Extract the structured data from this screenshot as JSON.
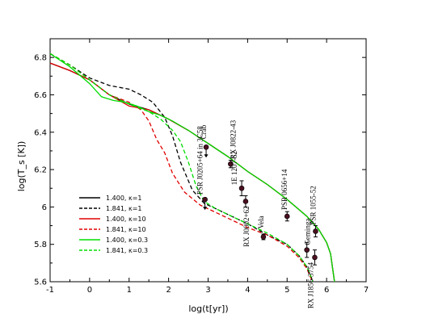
{
  "chart_data": {
    "type": "line",
    "xlabel": "log(t[yr])",
    "ylabel": "log(T_s [K])",
    "xlim": [
      -1,
      7
    ],
    "ylim": [
      5.6,
      6.9
    ],
    "xticks": [
      "-1",
      "0",
      "1",
      "2",
      "3",
      "4",
      "5",
      "6",
      "7"
    ],
    "yticks": [
      "5.6",
      "5.8",
      "6",
      "6.2",
      "6.4",
      "6.6",
      "6.8"
    ],
    "grid": false,
    "legend_position": "lower-left",
    "series": [
      {
        "name": "1.400,  κ=1",
        "color": "#000000",
        "dash": "solid",
        "x": [
          -1,
          -0.5,
          0,
          0.5,
          1,
          1.5,
          2,
          2.5,
          3,
          3.5,
          4,
          4.5,
          5,
          5.5,
          5.8,
          6.0,
          6.1,
          6.2
        ],
        "y": [
          6.77,
          6.73,
          6.68,
          6.6,
          6.55,
          6.52,
          6.47,
          6.41,
          6.34,
          6.27,
          6.19,
          6.12,
          6.04,
          5.95,
          5.88,
          5.81,
          5.75,
          5.6
        ]
      },
      {
        "name": "1.841,  κ=1",
        "color": "#000000",
        "dash": "dashed",
        "x": [
          -1,
          -0.5,
          0,
          0.5,
          1,
          1.3,
          1.6,
          1.9,
          2.1,
          2.3,
          2.6,
          2.9,
          3.2,
          3.6,
          4.0,
          4.5,
          5.0,
          5.3,
          5.5,
          5.6,
          5.65
        ],
        "y": [
          6.82,
          6.76,
          6.69,
          6.65,
          6.63,
          6.6,
          6.56,
          6.48,
          6.38,
          6.24,
          6.09,
          6.02,
          5.99,
          5.95,
          5.91,
          5.85,
          5.8,
          5.74,
          5.68,
          5.63,
          5.6
        ]
      },
      {
        "name": "1.400,  κ=10",
        "color": "#e00000",
        "dash": "solid",
        "x": [
          -1,
          -0.5,
          0,
          0.5,
          1,
          1.5,
          2,
          2.5,
          3,
          3.5,
          4,
          4.5,
          5,
          5.5,
          5.8,
          6.0,
          6.1,
          6.2
        ],
        "y": [
          6.77,
          6.73,
          6.68,
          6.6,
          6.54,
          6.52,
          6.47,
          6.41,
          6.34,
          6.27,
          6.19,
          6.12,
          6.04,
          5.95,
          5.88,
          5.81,
          5.75,
          5.6
        ]
      },
      {
        "name": "1.841,  κ=10",
        "color": "#e00000",
        "dash": "dashed",
        "x": [
          -1,
          -0.5,
          0,
          0.5,
          1,
          1.3,
          1.5,
          1.7,
          1.9,
          2.1,
          2.4,
          2.8,
          3.2,
          3.6,
          4.0,
          4.5,
          5.0,
          5.3,
          5.5,
          5.6,
          5.65
        ],
        "y": [
          6.82,
          6.76,
          6.68,
          6.6,
          6.56,
          6.52,
          6.46,
          6.36,
          6.29,
          6.18,
          6.08,
          6.01,
          5.97,
          5.93,
          5.89,
          5.85,
          5.79,
          5.73,
          5.67,
          5.62,
          5.6
        ]
      },
      {
        "name": "1.400,  κ=0.3",
        "color": "#00dd00",
        "dash": "solid",
        "x": [
          -1,
          -0.5,
          0,
          0.3,
          0.6,
          0.9,
          1.2,
          1.5,
          1.8,
          2.1,
          2.5,
          3,
          3.5,
          4,
          4.5,
          5,
          5.5,
          5.8,
          6.0,
          6.1,
          6.2
        ],
        "y": [
          6.82,
          6.75,
          6.66,
          6.59,
          6.57,
          6.56,
          6.54,
          6.51,
          6.49,
          6.46,
          6.41,
          6.34,
          6.27,
          6.19,
          6.12,
          6.04,
          5.95,
          5.88,
          5.81,
          5.75,
          5.6
        ]
      },
      {
        "name": "1.841,  κ=0.3",
        "color": "#00dd00",
        "dash": "dashed",
        "x": [
          -1,
          -0.5,
          0,
          0.5,
          1,
          1.5,
          1.8,
          2.1,
          2.3,
          2.5,
          2.7,
          2.9,
          3.2,
          3.6,
          4.0,
          4.5,
          5.0,
          5.3,
          5.5,
          5.6,
          5.65
        ],
        "y": [
          6.82,
          6.76,
          6.68,
          6.6,
          6.55,
          6.51,
          6.47,
          6.41,
          6.35,
          6.24,
          6.11,
          6.03,
          5.99,
          5.95,
          5.91,
          5.86,
          5.8,
          5.74,
          5.68,
          5.63,
          5.6
        ]
      }
    ],
    "observations": [
      {
        "label": "Crab",
        "x": 2.95,
        "y": 6.32,
        "err": 0.0,
        "upper_limit": true
      },
      {
        "label": "RX J0822-43",
        "x": 3.57,
        "y": 6.23,
        "err": 0.02
      },
      {
        "label": "1E 1207-52",
        "x": 3.85,
        "y": 6.1,
        "err": 0.04
      },
      {
        "label": "RX J0002+62",
        "x": 3.95,
        "y": 6.03,
        "err": 0.03
      },
      {
        "label": "PSR J0205+64 in 3C58",
        "x": 2.92,
        "y": 6.04,
        "err": 0.0,
        "upper_limit": true
      },
      {
        "label": "Vela",
        "x": 4.4,
        "y": 5.84,
        "err": 0.015
      },
      {
        "label": "PSR 0656+14",
        "x": 5.0,
        "y": 5.95,
        "err": 0.025
      },
      {
        "label": "PSR 1055-52",
        "x": 5.72,
        "y": 5.87,
        "err": 0.03
      },
      {
        "label": "Geminga",
        "x": 5.5,
        "y": 5.77,
        "err": 0.04
      },
      {
        "label": "RX J1856-3754",
        "x": 5.7,
        "y": 5.73,
        "err": 0.04
      }
    ]
  }
}
